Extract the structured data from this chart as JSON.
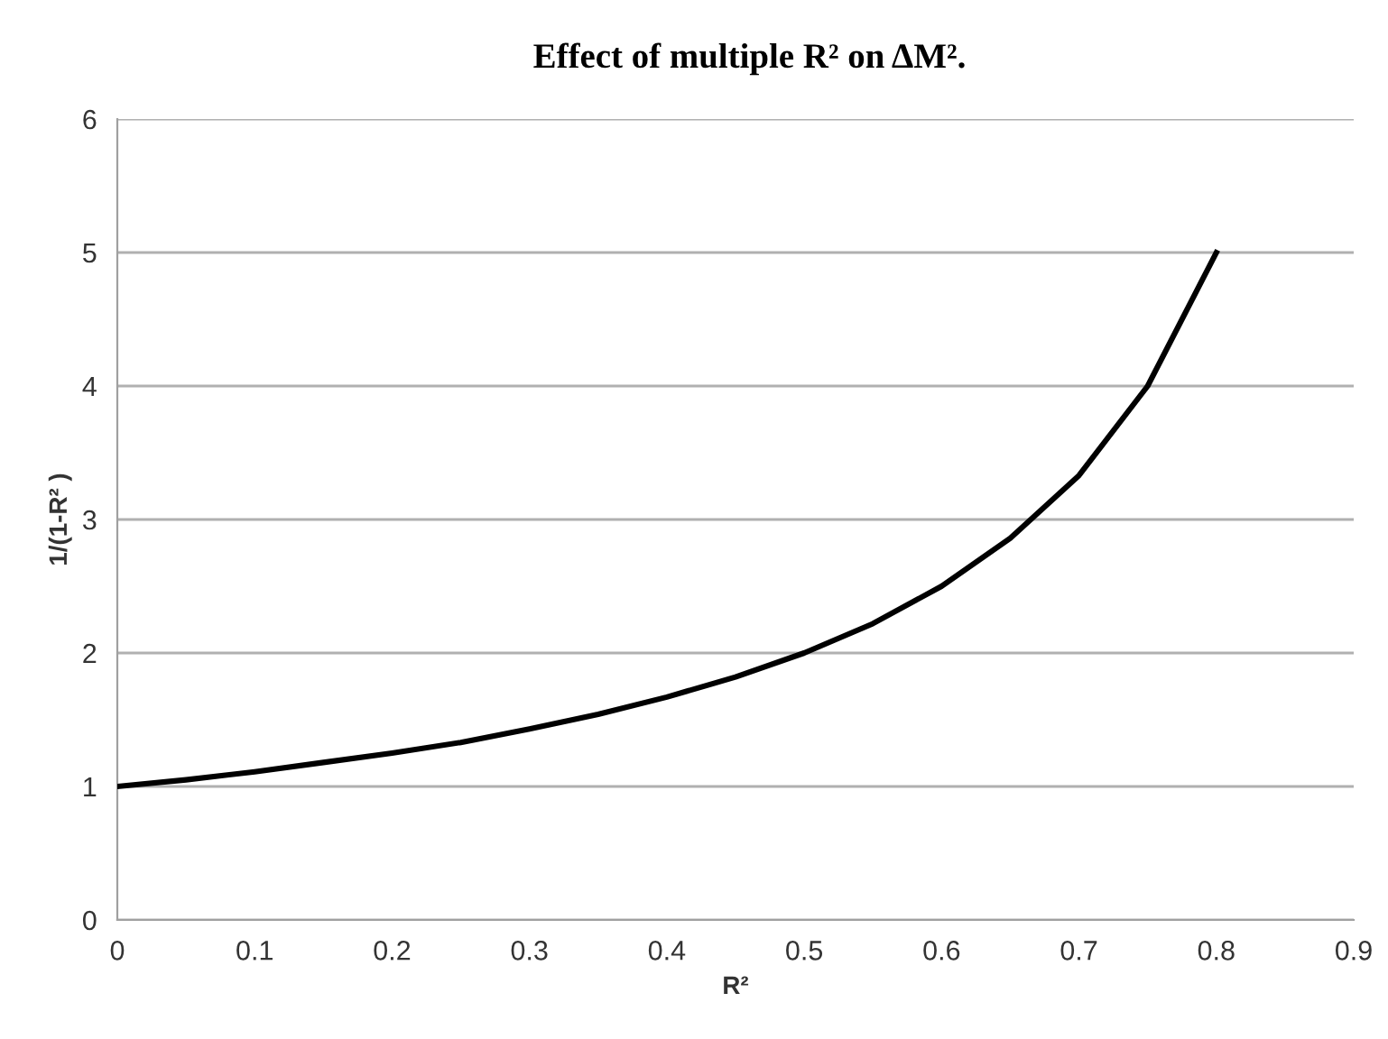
{
  "chart_data": {
    "type": "line",
    "title": "Effect of multiple R² on ΔM².",
    "xlabel": "R²",
    "ylabel": "1/(1-R² )",
    "x": [
      0,
      0.05,
      0.1,
      0.15,
      0.2,
      0.25,
      0.3,
      0.35,
      0.4,
      0.45,
      0.5,
      0.55,
      0.6,
      0.65,
      0.7,
      0.75,
      0.8
    ],
    "series": [
      {
        "color": "#000000",
        "values": [
          1,
          1.05,
          1.11,
          1.18,
          1.25,
          1.33,
          1.43,
          1.54,
          1.67,
          1.82,
          2,
          2.22,
          2.5,
          2.86,
          3.33,
          4,
          5
        ]
      }
    ],
    "xlim": [
      0,
      0.9
    ],
    "ylim": [
      0,
      6
    ],
    "xticks": [
      0,
      0.1,
      0.2,
      0.3,
      0.4,
      0.5,
      0.6,
      0.7,
      0.8,
      0.9
    ],
    "yticks": [
      0,
      1,
      2,
      3,
      4,
      5,
      6
    ],
    "grid": "y",
    "legend": false,
    "marker": "none",
    "line_style": "solid"
  }
}
